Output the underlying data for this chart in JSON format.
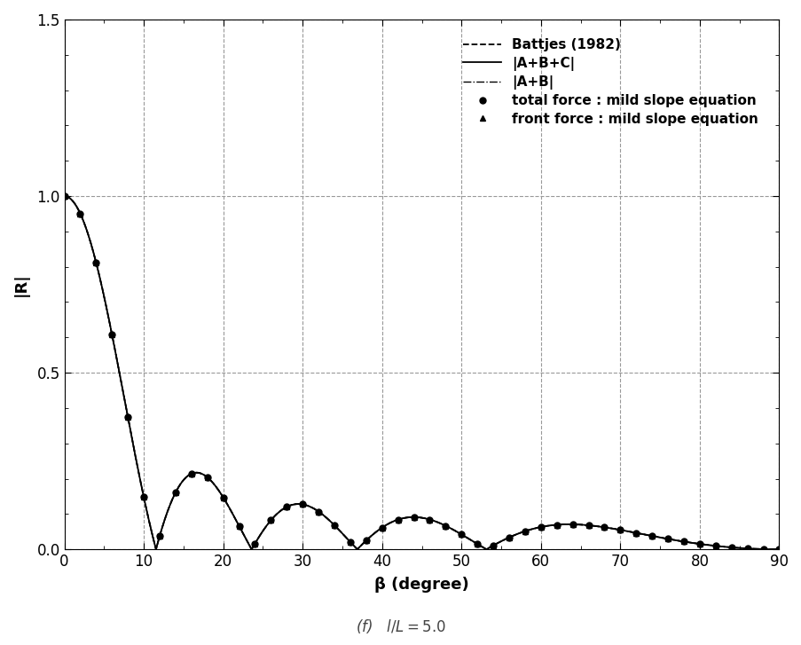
{
  "subtitle_text": "(f)  l/L = 5.0",
  "xlabel": "β (degree)",
  "ylabel": "|R|",
  "xlim": [
    0,
    90
  ],
  "ylim": [
    0.0,
    1.5
  ],
  "xticks": [
    0,
    10,
    20,
    30,
    40,
    50,
    60,
    70,
    80,
    90
  ],
  "yticks": [
    0.0,
    0.5,
    1.0,
    1.5
  ],
  "l_over_L": 5.0,
  "legend_entries": [
    "Battjes (1982)",
    "|A+B+C|",
    "|A+B|",
    "total force : mild slope equation",
    "front force : mild slope equation"
  ],
  "line_color": "black",
  "grid_color": "#999999",
  "background_color": "white",
  "figsize": [
    9.04,
    7.27
  ],
  "dpi": 100
}
